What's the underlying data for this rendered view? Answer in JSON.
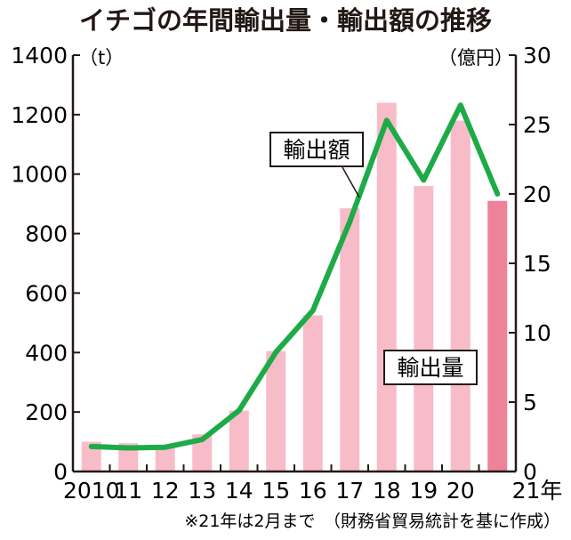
{
  "chart_data": {
    "type": "bar+line",
    "title": "イチゴの年間輸出量・輸出額の推移",
    "categories": [
      "2010",
      "11",
      "12",
      "13",
      "14",
      "15",
      "16",
      "17",
      "18",
      "19",
      "20",
      "21年"
    ],
    "series": [
      {
        "name": "輸出量",
        "type": "bar",
        "axis": "left",
        "unit": "（t）",
        "values": [
          100,
          95,
          90,
          125,
          205,
          405,
          525,
          885,
          1240,
          960,
          1180,
          910
        ],
        "color": "#f8bcc8",
        "last_color": "#ee8299"
      },
      {
        "name": "輸出額",
        "type": "line",
        "axis": "right",
        "unit": "（億円）",
        "values": [
          1.8,
          1.7,
          1.75,
          2.3,
          4.4,
          8.6,
          11.6,
          18.0,
          25.3,
          21.0,
          26.4,
          20.0
        ],
        "color": "#1dab48"
      }
    ],
    "y_left": {
      "min": 0,
      "max": 1400,
      "ticks": [
        "0",
        "200",
        "400",
        "600",
        "800",
        "1000",
        "1200",
        "1400"
      ]
    },
    "y_right": {
      "min": 0,
      "max": 30,
      "ticks": [
        "0",
        "5",
        "10",
        "15",
        "20",
        "25",
        "30"
      ]
    },
    "callouts": {
      "amount": "輸出額",
      "volume": "輸出量"
    },
    "note": "※21年は2月まで　（財務省貿易統計を基に作成）"
  }
}
